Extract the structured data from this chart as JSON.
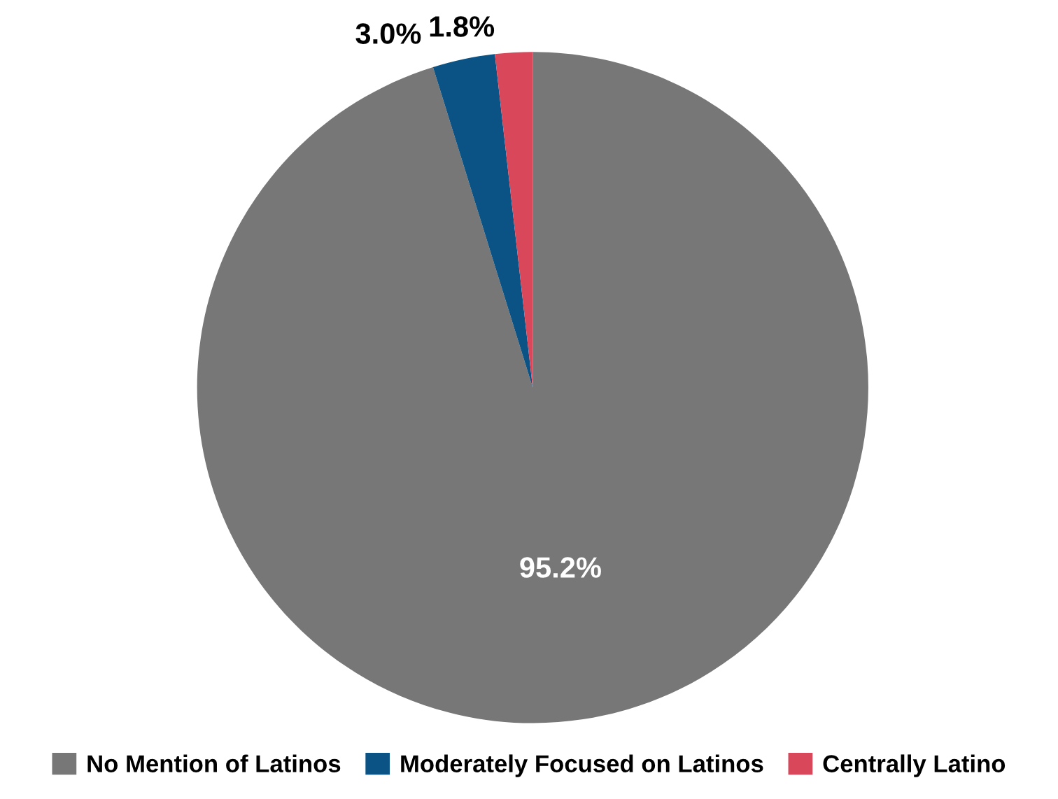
{
  "chart_data": {
    "type": "pie",
    "categories": [
      "No Mention of Latinos",
      "Moderately Focused on Latinos",
      "Centrally Latino"
    ],
    "values": [
      95.2,
      3.0,
      1.8
    ],
    "colors": [
      "#777777",
      "#0a5384",
      "#d9485a"
    ],
    "value_labels": [
      "95.2%",
      "3.0%",
      "1.8%"
    ],
    "legend": "bottom"
  }
}
